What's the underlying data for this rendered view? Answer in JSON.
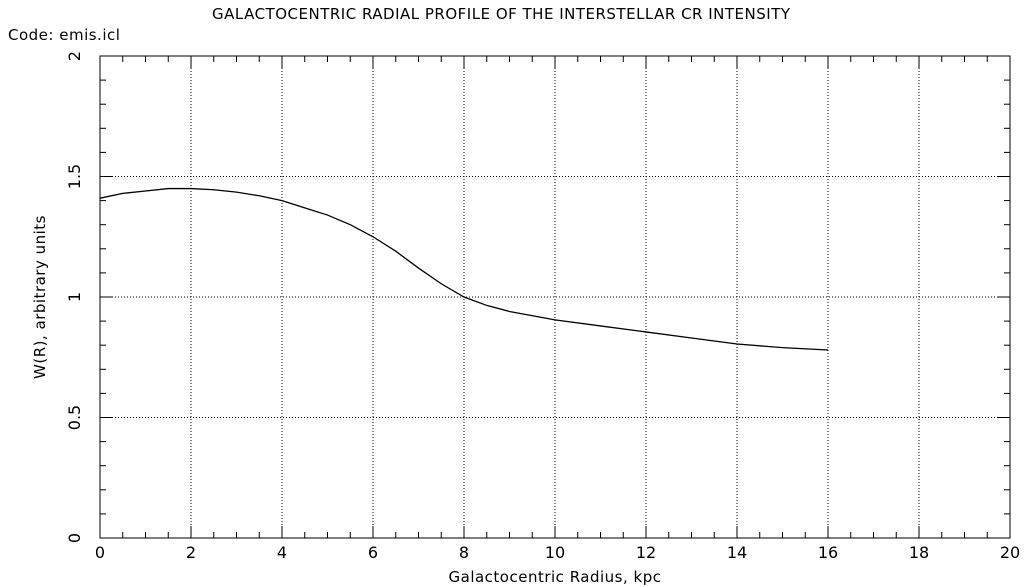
{
  "chart_data": {
    "type": "line",
    "title": "GALACTOCENTRIC RADIAL PROFILE OF THE INTERSTELLAR CR INTENSITY",
    "code_label": "Code: emis.icl",
    "xlabel": "Galactocentric Radius, kpc",
    "ylabel": "W(R), arbitrary units",
    "xlim": [
      0,
      20
    ],
    "ylim": [
      0,
      2
    ],
    "x_ticks": [
      "0",
      "2",
      "4",
      "6",
      "8",
      "10",
      "12",
      "14",
      "16",
      "18",
      "20"
    ],
    "y_ticks": [
      "0",
      "0.5",
      "1",
      "1.5",
      "2"
    ],
    "grid": true,
    "series": [
      {
        "x": [
          0,
          0.5,
          1,
          1.5,
          2,
          2.5,
          3,
          3.5,
          4,
          4.5,
          5,
          5.5,
          6,
          6.5,
          7,
          7.5,
          8,
          8.5,
          9,
          10,
          11,
          12,
          13,
          14,
          15,
          16
        ],
        "y": [
          1.41,
          1.43,
          1.44,
          1.45,
          1.45,
          1.445,
          1.435,
          1.42,
          1.4,
          1.37,
          1.34,
          1.3,
          1.25,
          1.19,
          1.12,
          1.055,
          1.0,
          0.965,
          0.94,
          0.905,
          0.88,
          0.855,
          0.83,
          0.805,
          0.79,
          0.78
        ]
      }
    ]
  }
}
